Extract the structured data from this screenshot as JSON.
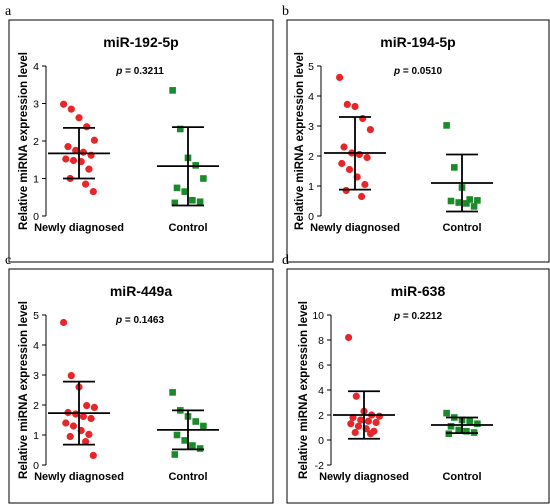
{
  "chart_data": [
    {
      "type": "scatter",
      "panel_label": "a",
      "title": "miR-192-5p",
      "annotation": "p = 0.3211",
      "p_prefix": "p",
      "p_value": "= 0.3211",
      "ylabel": "Relative miRNA expression level",
      "ylim": [
        0,
        4
      ],
      "yticks": [
        "0",
        "1",
        "2",
        "3",
        "4"
      ],
      "ytick_values": [
        0,
        1,
        2,
        3,
        4
      ],
      "categories": [
        "Newly diagnosed",
        "Control"
      ],
      "series": [
        {
          "name": "Newly diagnosed",
          "color": "#e8262a",
          "marker": "circle",
          "values": [
            2.98,
            2.85,
            2.62,
            2.38,
            2.02,
            1.85,
            1.75,
            1.7,
            1.62,
            1.52,
            1.48,
            1.45,
            1.25,
            1.0,
            0.85,
            0.65
          ],
          "mean": 1.67,
          "sd_low": 1.0,
          "sd_high": 2.35
        },
        {
          "name": "Control",
          "color": "#1a8a2a",
          "marker": "square",
          "values": [
            3.35,
            2.32,
            1.55,
            1.35,
            1.0,
            0.75,
            0.65,
            0.42,
            0.38,
            0.35
          ],
          "mean": 1.33,
          "sd_low": 0.28,
          "sd_high": 2.37
        }
      ]
    },
    {
      "type": "scatter",
      "panel_label": "b",
      "title": "miR-194-5p",
      "annotation": "p = 0.0510",
      "p_prefix": "p",
      "p_value": "= 0.0510",
      "ylabel": "Relative miRNA expression level",
      "ylim": [
        0,
        5
      ],
      "yticks": [
        "0",
        "1",
        "2",
        "3",
        "4",
        "5"
      ],
      "ytick_values": [
        0,
        1,
        2,
        3,
        4,
        5
      ],
      "categories": [
        "Newly diagnosed",
        "Control"
      ],
      "series": [
        {
          "name": "Newly diagnosed",
          "color": "#e8262a",
          "marker": "circle",
          "values": [
            4.62,
            3.72,
            3.65,
            3.25,
            2.88,
            2.3,
            2.1,
            2.05,
            1.95,
            1.75,
            1.55,
            1.3,
            1.05,
            0.85,
            0.65
          ],
          "mean": 2.1,
          "sd_low": 0.88,
          "sd_high": 3.3
        },
        {
          "name": "Control",
          "color": "#1a8a2a",
          "marker": "square",
          "values": [
            3.02,
            1.62,
            0.95,
            0.55,
            0.52,
            0.5,
            0.45,
            0.42,
            0.32
          ],
          "mean": 1.1,
          "sd_low": 0.15,
          "sd_high": 2.05
        }
      ]
    },
    {
      "type": "scatter",
      "panel_label": "c",
      "title": "miR-449a",
      "annotation": "p = 0.1463",
      "p_prefix": "p",
      "p_value": "= 0.1463",
      "ylabel": "Relative miRNA expression level",
      "ylim": [
        0,
        5
      ],
      "yticks": [
        "0",
        "1",
        "2",
        "3",
        "4",
        "5"
      ],
      "ytick_values": [
        0,
        1,
        2,
        3,
        4,
        5
      ],
      "categories": [
        "Newly diagnosed",
        "Control"
      ],
      "series": [
        {
          "name": "Newly diagnosed",
          "color": "#e8262a",
          "marker": "circle",
          "values": [
            4.75,
            2.98,
            2.6,
            1.98,
            1.92,
            1.75,
            1.7,
            1.62,
            1.55,
            1.4,
            1.3,
            1.15,
            1.02,
            0.95,
            0.78,
            0.32
          ],
          "mean": 1.73,
          "sd_low": 0.68,
          "sd_high": 2.78
        },
        {
          "name": "Control",
          "color": "#1a8a2a",
          "marker": "square",
          "values": [
            2.42,
            1.82,
            1.62,
            1.45,
            1.3,
            1.0,
            0.82,
            0.65,
            0.55,
            0.35
          ],
          "mean": 1.17,
          "sd_low": 0.52,
          "sd_high": 1.82
        }
      ]
    },
    {
      "type": "scatter",
      "panel_label": "d",
      "title": "miR-638",
      "annotation": "p = 0.2212",
      "p_prefix": "p",
      "p_value": "= 0.2212",
      "ylabel": "Relative miRNA expression level",
      "ylim": [
        -2,
        10
      ],
      "yticks": [
        "-2",
        "0",
        "2",
        "4",
        "6",
        "8",
        "10"
      ],
      "ytick_values": [
        -2,
        0,
        2,
        4,
        6,
        8,
        10
      ],
      "categories": [
        "Newly diagnosed",
        "Control"
      ],
      "series": [
        {
          "name": "Newly diagnosed",
          "color": "#e8262a",
          "marker": "circle",
          "values": [
            8.2,
            3.5,
            2.3,
            2.0,
            1.9,
            1.8,
            1.6,
            1.5,
            1.4,
            1.3,
            1.1,
            0.9,
            0.7,
            0.6,
            0.5
          ],
          "mean": 2.0,
          "sd_low": 0.1,
          "sd_high": 3.9
        },
        {
          "name": "Control",
          "color": "#1a8a2a",
          "marker": "square",
          "values": [
            2.15,
            1.8,
            1.6,
            1.5,
            1.3,
            1.1,
            0.8,
            0.7,
            0.6,
            0.5
          ],
          "mean": 1.2,
          "sd_low": 0.55,
          "sd_high": 1.8
        }
      ]
    }
  ]
}
